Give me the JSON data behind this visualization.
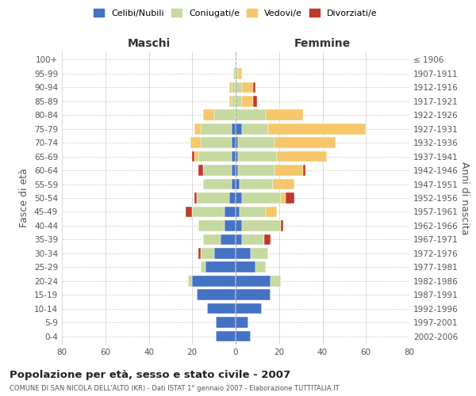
{
  "age_groups": [
    "0-4",
    "5-9",
    "10-14",
    "15-19",
    "20-24",
    "25-29",
    "30-34",
    "35-39",
    "40-44",
    "45-49",
    "50-54",
    "55-59",
    "60-64",
    "65-69",
    "70-74",
    "75-79",
    "80-84",
    "85-89",
    "90-94",
    "95-99",
    "100+"
  ],
  "birth_years": [
    "2002-2006",
    "1997-2001",
    "1992-1996",
    "1987-1991",
    "1982-1986",
    "1977-1981",
    "1972-1976",
    "1967-1971",
    "1962-1966",
    "1957-1961",
    "1952-1956",
    "1947-1951",
    "1942-1946",
    "1937-1941",
    "1932-1936",
    "1927-1931",
    "1922-1926",
    "1917-1921",
    "1912-1916",
    "1907-1911",
    "≤ 1906"
  ],
  "male": {
    "celibi": [
      9,
      9,
      13,
      18,
      20,
      14,
      10,
      7,
      5,
      5,
      3,
      2,
      2,
      2,
      2,
      2,
      0,
      0,
      0,
      0,
      0
    ],
    "coniugati": [
      0,
      0,
      0,
      0,
      2,
      2,
      6,
      8,
      12,
      15,
      15,
      13,
      13,
      15,
      14,
      14,
      10,
      2,
      2,
      1,
      0
    ],
    "vedovi": [
      0,
      0,
      0,
      0,
      0,
      0,
      0,
      0,
      0,
      0,
      0,
      0,
      0,
      2,
      5,
      3,
      5,
      1,
      1,
      0,
      0
    ],
    "divorziati": [
      0,
      0,
      0,
      0,
      0,
      0,
      1,
      0,
      0,
      3,
      1,
      0,
      2,
      1,
      0,
      0,
      0,
      0,
      0,
      0,
      0
    ]
  },
  "female": {
    "nubili": [
      7,
      6,
      12,
      16,
      16,
      9,
      7,
      3,
      3,
      2,
      3,
      2,
      1,
      1,
      1,
      3,
      0,
      0,
      0,
      0,
      0
    ],
    "coniugate": [
      0,
      0,
      0,
      0,
      5,
      5,
      8,
      10,
      18,
      12,
      18,
      15,
      17,
      18,
      17,
      12,
      14,
      3,
      3,
      1,
      0
    ],
    "vedove": [
      0,
      0,
      0,
      0,
      0,
      0,
      0,
      0,
      0,
      5,
      2,
      10,
      13,
      23,
      28,
      45,
      17,
      5,
      5,
      2,
      0
    ],
    "divorziate": [
      0,
      0,
      0,
      0,
      0,
      0,
      0,
      3,
      1,
      0,
      4,
      0,
      1,
      0,
      0,
      0,
      0,
      2,
      1,
      0,
      0
    ]
  },
  "colors": {
    "celibi": "#4472c4",
    "coniugati": "#c5d9a0",
    "vedovi": "#f5c76a",
    "divorziati": "#c0392b"
  },
  "xlim": 80,
  "title": "Popolazione per età, sesso e stato civile - 2007",
  "subtitle": "COMUNE DI SAN NICOLA DELL'ALTO (KR) - Dati ISTAT 1° gennaio 2007 - Elaborazione TUTTITALIA.IT",
  "ylabel": "Fasce di età",
  "right_label": "Anni di nascita",
  "legend_labels": [
    "Celibi/Nubili",
    "Coniugati/e",
    "Vedovi/e",
    "Divorziati/e"
  ],
  "maschi_label": "Maschi",
  "femmine_label": "Femmine"
}
